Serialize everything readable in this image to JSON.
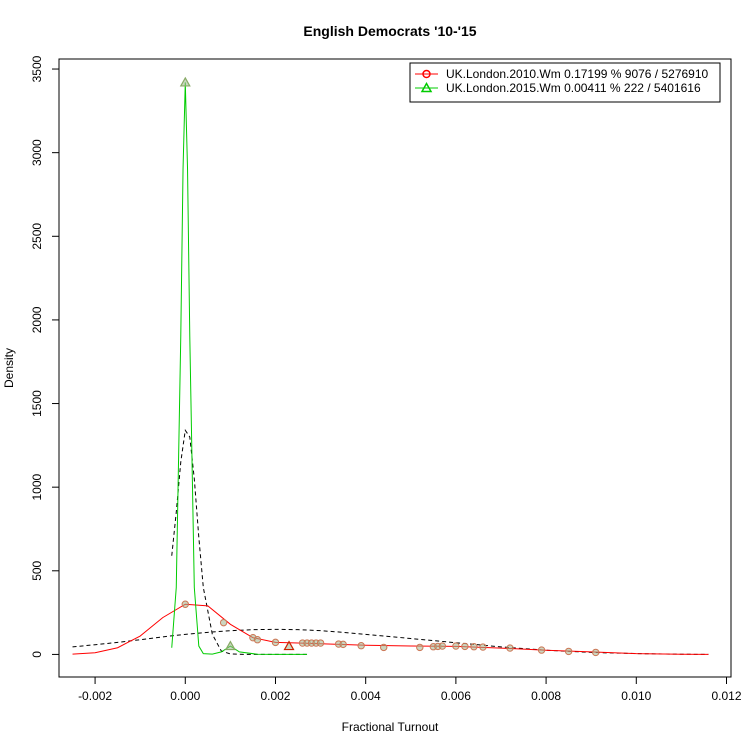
{
  "chart_data": {
    "type": "line",
    "title": "English Democrats '10-'15",
    "xlabel": "Fractional Turnout",
    "ylabel": "Density",
    "xlim": [
      -0.0028,
      0.0121
    ],
    "ylim": [
      -135,
      3560
    ],
    "x_ticks": [
      -0.002,
      0.0,
      0.002,
      0.004,
      0.006,
      0.008,
      0.01,
      0.012
    ],
    "x_tick_labels": [
      "-0.002",
      "0.000",
      "0.002",
      "0.004",
      "0.006",
      "0.008",
      "0.010",
      "0.012"
    ],
    "y_ticks": [
      0,
      500,
      1000,
      1500,
      2000,
      2500,
      3000,
      3500
    ],
    "y_tick_labels": [
      "0",
      "500",
      "1000",
      "1500",
      "2000",
      "2500",
      "3000",
      "3500"
    ],
    "legend_position": "top-right",
    "series": [
      {
        "name": "UK.London.2010.Wm 0.17199 % 9076 / 5276910",
        "color": "#ff0000",
        "marker": "circle",
        "curve": {
          "x": [
            -0.0025,
            -0.002,
            -0.0015,
            -0.001,
            -0.0005,
            0.0,
            0.0005,
            0.001,
            0.0015,
            0.002,
            0.0025,
            0.003,
            0.004,
            0.005,
            0.006,
            0.007,
            0.008,
            0.009,
            0.01,
            0.011,
            0.0116
          ],
          "y": [
            2,
            10,
            40,
            110,
            220,
            300,
            290,
            180,
            100,
            72,
            68,
            64,
            55,
            50,
            48,
            38,
            25,
            15,
            5,
            1,
            0
          ]
        },
        "points": {
          "x": [
            0.0,
            0.00085,
            0.0015,
            0.0016,
            0.002,
            0.0026,
            0.0027,
            0.0028,
            0.0029,
            0.003,
            0.0034,
            0.0035,
            0.0039,
            0.0044,
            0.0052,
            0.0055,
            0.0056,
            0.0057,
            0.006,
            0.0062,
            0.0064,
            0.0066,
            0.0072,
            0.0079,
            0.0085,
            0.0091
          ],
          "y": [
            300,
            190,
            100,
            88,
            72,
            68,
            68,
            68,
            68,
            68,
            62,
            60,
            52,
            42,
            42,
            46,
            48,
            50,
            50,
            48,
            46,
            44,
            38,
            26,
            18,
            12
          ]
        }
      },
      {
        "name": "UK.London.2015.Wm 0.00411 % 222 / 5401616",
        "color": "#00cc00",
        "marker": "triangle",
        "curve": {
          "x": [
            -0.0003,
            -0.0002,
            -0.0001,
            -5e-05,
            0.0,
            5e-05,
            0.0001,
            0.0002,
            0.0003,
            0.0004,
            0.0006,
            0.0008,
            0.001,
            0.0012,
            0.0016,
            0.002,
            0.0027
          ],
          "y": [
            40,
            400,
            1900,
            2900,
            3420,
            2900,
            1900,
            400,
            50,
            5,
            2,
            15,
            50,
            15,
            1,
            0,
            0
          ]
        },
        "points": {
          "x": [
            0.0,
            0.001,
            0.0023
          ],
          "y": [
            3420,
            50,
            50
          ]
        }
      }
    ],
    "reference_curves": [
      {
        "color": "#000000",
        "dash": "dashed",
        "x": [
          -0.0003,
          -0.0002,
          -0.0001,
          0.0,
          0.0001,
          0.0002,
          0.0003,
          0.0004,
          0.0006,
          0.0008,
          0.001,
          0.0013,
          0.0016,
          0.002,
          0.0027
        ],
        "y": [
          590,
          850,
          1150,
          1340,
          1300,
          1050,
          700,
          400,
          120,
          20,
          3,
          0,
          0,
          0,
          0
        ]
      },
      {
        "color": "#000000",
        "dash": "dashed",
        "x": [
          -0.0025,
          -0.002,
          -0.0015,
          -0.001,
          -0.0005,
          0.0,
          0.0005,
          0.001,
          0.0015,
          0.002,
          0.0025,
          0.003,
          0.0035,
          0.004,
          0.005,
          0.006,
          0.007,
          0.008,
          0.009,
          0.01,
          0.011,
          0.0116
        ],
        "y": [
          45,
          58,
          72,
          88,
          105,
          120,
          132,
          142,
          148,
          150,
          148,
          142,
          132,
          120,
          95,
          70,
          45,
          25,
          12,
          5,
          1,
          0
        ]
      }
    ]
  }
}
